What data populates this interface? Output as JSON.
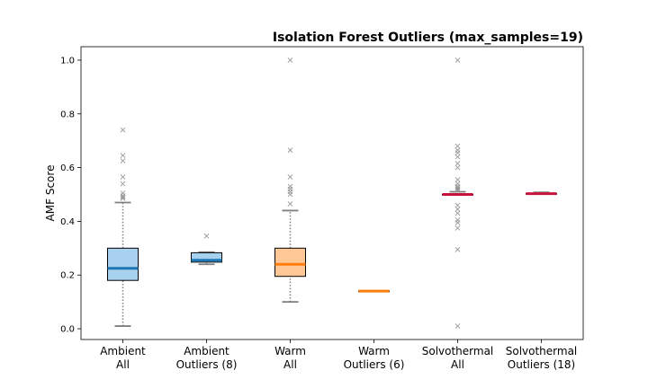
{
  "chart_data": {
    "type": "box",
    "title": "Isolation Forest Outliers (max_samples=19)",
    "xlabel": "",
    "ylabel": "AMF Score",
    "ylim": [
      -0.04,
      1.05
    ],
    "yticks": [
      "0.0",
      "0.2",
      "0.4",
      "0.6",
      "0.8",
      "1.0"
    ],
    "grid": false,
    "colors": {
      "ambient_fill": "#a8d1ef",
      "ambient_median": "#1f77b4",
      "warm_fill": "#ffc896",
      "warm_median": "#ff7f0e",
      "solvo_median": "#c8143c",
      "whisker": "#7f7f7f",
      "flier": "#999999"
    },
    "series": [
      {
        "category": [
          "Ambient",
          "All"
        ],
        "whislo": 0.01,
        "q1": 0.18,
        "med": 0.225,
        "q3": 0.3,
        "whishi": 0.47,
        "fill": "ambient_fill",
        "median_color": "ambient_median",
        "fliers": [
          0.74,
          0.645,
          0.625,
          0.565,
          0.54,
          0.505,
          0.495,
          0.49,
          0.485
        ]
      },
      {
        "category": [
          "Ambient",
          "Outliers (8)"
        ],
        "whislo": 0.24,
        "q1": 0.248,
        "med": 0.255,
        "q3": 0.283,
        "whishi": 0.285,
        "fill": "ambient_fill",
        "median_color": "ambient_median",
        "fliers": [
          0.345
        ]
      },
      {
        "category": [
          "Warm",
          "All"
        ],
        "whislo": 0.1,
        "q1": 0.195,
        "med": 0.24,
        "q3": 0.3,
        "whishi": 0.44,
        "fill": "warm_fill",
        "median_color": "warm_median",
        "fliers": [
          1.0,
          0.665,
          0.565,
          0.53,
          0.52,
          0.51,
          0.5,
          0.465
        ]
      },
      {
        "category": [
          "Warm",
          "Outliers (6)"
        ],
        "whislo": 0.14,
        "q1": 0.14,
        "med": 0.14,
        "q3": 0.14,
        "whishi": 0.14,
        "fill": "warm_fill",
        "median_color": "warm_median",
        "fliers": []
      },
      {
        "category": [
          "Solvothermal",
          "All"
        ],
        "whislo": 0.5,
        "q1": 0.5,
        "med": 0.5,
        "q3": 0.5,
        "whishi": 0.51,
        "fill": "none",
        "median_color": "solvo_median",
        "fliers": [
          1.0,
          0.68,
          0.665,
          0.655,
          0.64,
          0.615,
          0.6,
          0.555,
          0.54,
          0.53,
          0.525,
          0.52,
          0.515,
          0.46,
          0.445,
          0.43,
          0.405,
          0.395,
          0.375,
          0.295,
          0.01
        ]
      },
      {
        "category": [
          "Solvothermal",
          "Outliers (18)"
        ],
        "whislo": 0.503,
        "q1": 0.503,
        "med": 0.503,
        "q3": 0.503,
        "whishi": 0.508,
        "fill": "none",
        "median_color": "solvo_median",
        "fliers": []
      }
    ]
  }
}
